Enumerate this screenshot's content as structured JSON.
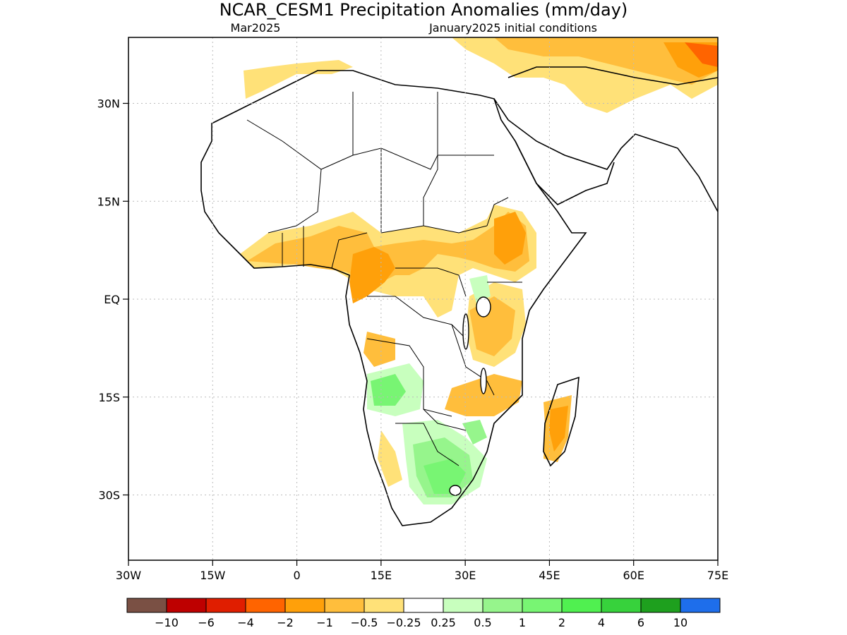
{
  "header": {
    "title": "NCAR_CESM1 Precipitation Anomalies (mm/day)",
    "month": "Mar2025",
    "init": "January2025 initial conditions"
  },
  "axes": {
    "lat_labels": [
      "30N",
      "15N",
      "EQ",
      "15S",
      "30S"
    ],
    "lat_values": [
      30,
      15,
      0,
      -15,
      -30
    ],
    "lon_labels": [
      "30W",
      "15W",
      "0",
      "15E",
      "30E",
      "45E",
      "60E",
      "75E"
    ],
    "lon_values": [
      -30,
      -15,
      0,
      15,
      30,
      45,
      60,
      75
    ],
    "lon_range": [
      -30,
      75
    ],
    "lat_range": [
      -40,
      40
    ]
  },
  "colorbar": {
    "colors": [
      "#7a5044",
      "#be0000",
      "#e01e00",
      "#ff6400",
      "#ffa00a",
      "#ffbe3c",
      "#ffe178",
      "#ffffff",
      "#c8ffbe",
      "#96f58c",
      "#78f573",
      "#50f050",
      "#37d23c",
      "#1ea01e",
      "#1e6eeb"
    ],
    "labels": [
      "−10",
      "−6",
      "−4",
      "−2",
      "−1",
      "−0.5",
      "−0.25",
      "0.25",
      "0.5",
      "1",
      "2",
      "4",
      "6",
      "10"
    ]
  }
}
